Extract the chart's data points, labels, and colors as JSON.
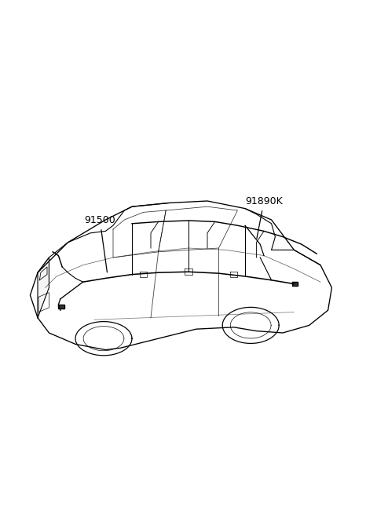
{
  "background_color": "#ffffff",
  "figure_width": 4.8,
  "figure_height": 6.56,
  "dpi": 100,
  "label_91500": "91500",
  "label_91890K": "91890K",
  "car_color": "#000000",
  "line_width": 0.8,
  "text_fontsize": 9,
  "text_color": "#000000"
}
